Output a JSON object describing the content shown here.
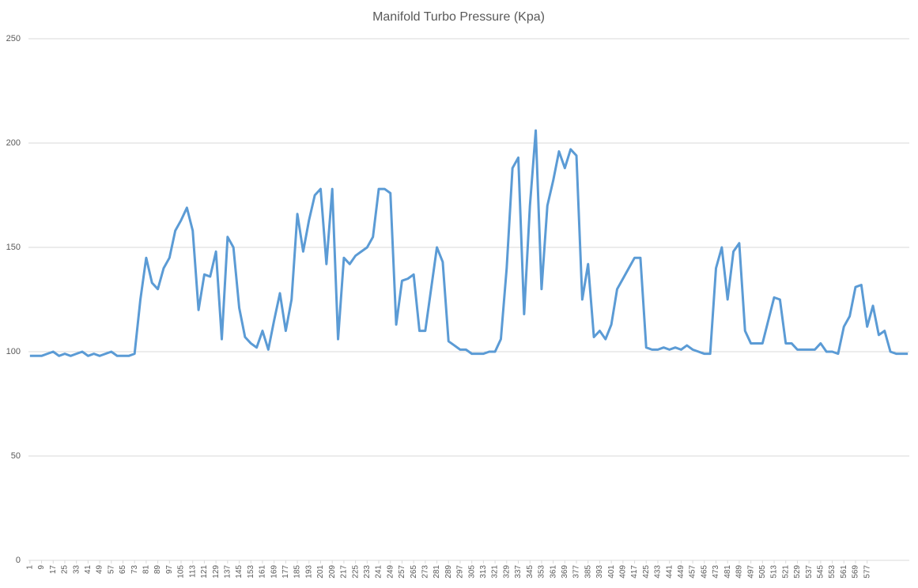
{
  "chart_data": {
    "type": "line",
    "title": "Manifold Turbo Pressure (Kpa)",
    "x": [
      1,
      5,
      9,
      13,
      17,
      21,
      25,
      29,
      33,
      37,
      41,
      45,
      49,
      53,
      57,
      61,
      65,
      69,
      73,
      77,
      81,
      85,
      89,
      93,
      97,
      101,
      105,
      109,
      113,
      117,
      121,
      125,
      129,
      133,
      137,
      141,
      145,
      149,
      153,
      157,
      161,
      165,
      169,
      173,
      177,
      181,
      185,
      189,
      193,
      197,
      201,
      205,
      209,
      213,
      217,
      221,
      225,
      229,
      233,
      237,
      241,
      245,
      249,
      253,
      257,
      261,
      265,
      269,
      273,
      277,
      281,
      285,
      289,
      293,
      297,
      301,
      305,
      309,
      313,
      317,
      321,
      325,
      329,
      333,
      337,
      341,
      345,
      349,
      353,
      357,
      361,
      365,
      369,
      373,
      377,
      381,
      385,
      389,
      393,
      397,
      401,
      405,
      409,
      413,
      417,
      421,
      425,
      429,
      433,
      437,
      441,
      445,
      449,
      453,
      457,
      461,
      465,
      469,
      473,
      477,
      481,
      485,
      489,
      493,
      497,
      501,
      505,
      509,
      513,
      517,
      521,
      525,
      529,
      533,
      537,
      541,
      545,
      549,
      553,
      557,
      561,
      565,
      569,
      573,
      577,
      581,
      585,
      589,
      593,
      597,
      601,
      605
    ],
    "values": [
      98,
      98,
      98,
      99,
      100,
      98,
      99,
      98,
      99,
      100,
      98,
      99,
      98,
      99,
      100,
      98,
      98,
      98,
      99,
      125,
      145,
      133,
      130,
      140,
      145,
      158,
      163,
      169,
      158,
      120,
      137,
      136,
      148,
      106,
      155,
      150,
      121,
      107,
      104,
      102,
      110,
      101,
      115,
      128,
      110,
      125,
      166,
      148,
      163,
      175,
      178,
      142,
      178,
      106,
      145,
      142,
      146,
      148,
      150,
      155,
      178,
      178,
      176,
      113,
      134,
      135,
      137,
      110,
      110,
      130,
      150,
      143,
      105,
      103,
      101,
      101,
      99,
      99,
      99,
      100,
      100,
      106,
      140,
      188,
      193,
      118,
      170,
      206,
      130,
      170,
      182,
      196,
      188,
      197,
      194,
      125,
      142,
      107,
      110,
      106,
      113,
      130,
      135,
      140,
      145,
      145,
      102,
      101,
      101,
      102,
      101,
      102,
      101,
      103,
      101,
      100,
      99,
      99,
      140,
      150,
      125,
      148,
      152,
      110,
      104,
      104,
      104,
      115,
      126,
      125,
      104,
      104,
      101,
      101,
      101,
      101,
      104,
      100,
      100,
      99,
      112,
      117,
      131,
      132,
      112,
      122,
      108,
      110,
      100,
      99,
      99,
      99
    ],
    "color": "#5b9bd5",
    "xlim": [
      0,
      606
    ],
    "xticks": [
      1,
      9,
      17,
      25,
      33,
      41,
      49,
      57,
      65,
      73,
      81,
      89,
      97,
      105,
      113,
      121,
      129,
      137,
      145,
      153,
      161,
      169,
      177,
      185,
      193,
      201,
      209,
      217,
      225,
      233,
      241,
      249,
      257,
      265,
      273,
      281,
      289,
      297,
      305,
      313,
      321,
      329,
      337,
      345,
      353,
      361,
      369,
      377,
      385,
      393,
      401,
      409,
      417,
      425,
      433,
      441,
      449,
      457,
      465,
      473,
      481,
      489,
      497,
      505,
      513,
      521,
      529,
      537,
      545,
      553,
      561,
      569,
      577
    ],
    "ylim": [
      0,
      250
    ],
    "yticks": [
      0,
      50,
      100,
      150,
      200,
      250
    ],
    "grid": true
  }
}
